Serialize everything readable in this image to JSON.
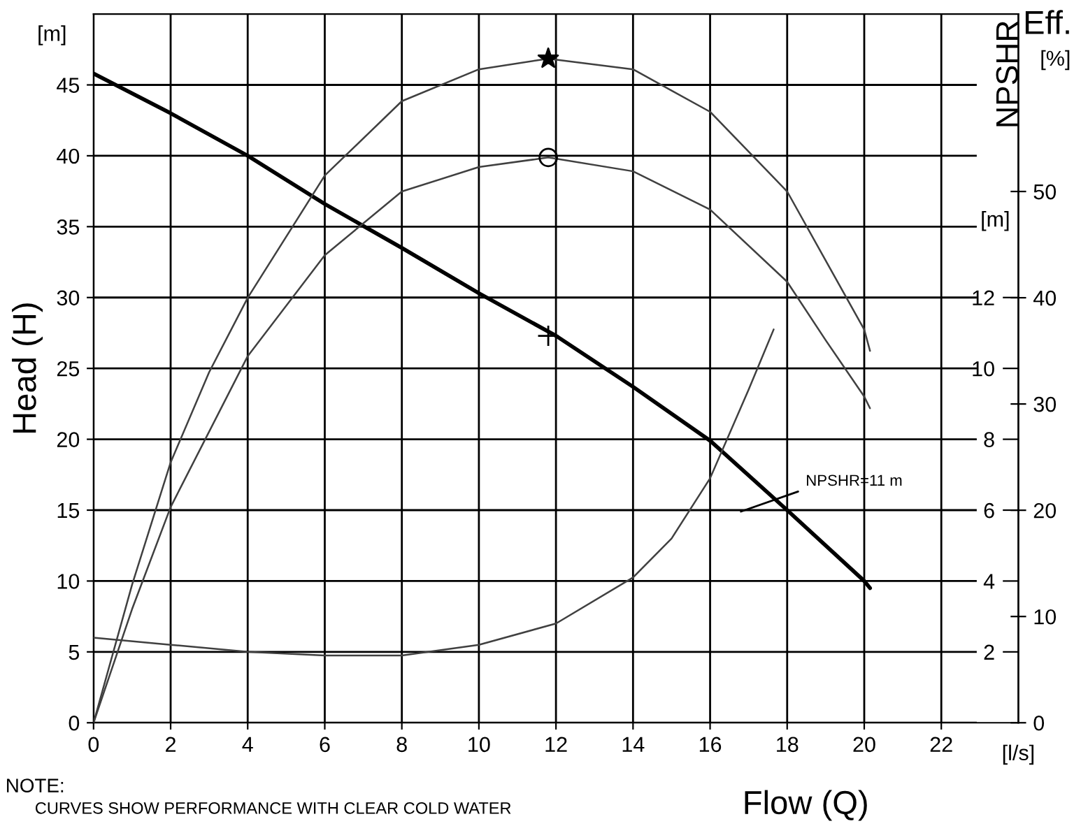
{
  "chart_data": {
    "type": "line",
    "xlabel": "Flow (Q)",
    "ylabel": "Head (H)",
    "y2label": "NPSHR",
    "y3label": "Eff.",
    "xlim": [
      0,
      24
    ],
    "xticks": [
      0,
      2,
      4,
      6,
      8,
      10,
      12,
      14,
      16,
      18,
      20,
      22
    ],
    "ylim": [
      0,
      50
    ],
    "yticks": [
      0,
      5,
      10,
      15,
      20,
      25,
      30,
      35,
      40,
      45
    ],
    "y2lim": [
      0,
      20
    ],
    "y2ticks": [
      2,
      4,
      6,
      8,
      10,
      12
    ],
    "y3lim": [
      0,
      66.7
    ],
    "y3ticks": [
      0,
      10,
      20,
      30,
      40,
      50
    ],
    "grid": true,
    "series": [
      {
        "color": "#000000",
        "axis": "y",
        "x": [
          0,
          2,
          4,
          6,
          8,
          10,
          12,
          14,
          16,
          18,
          20,
          20.15
        ],
        "values": [
          45.8,
          43.0,
          40.0,
          36.6,
          33.5,
          30.3,
          27.3,
          23.7,
          19.9,
          15.0,
          10.0,
          9.5
        ]
      },
      {
        "color": "#404040",
        "axis": "y3",
        "x": [
          0,
          1,
          2,
          3,
          4,
          6,
          8,
          10,
          11.8,
          14,
          15,
          16,
          18,
          19,
          20,
          20.15
        ],
        "values": [
          0,
          13,
          24.5,
          33,
          40,
          51.5,
          58.5,
          61.5,
          62.5,
          61.5,
          59.5,
          57.5,
          50,
          43.5,
          37,
          35
        ]
      },
      {
        "color": "#404040",
        "axis": "y3",
        "x": [
          0,
          1,
          2,
          4,
          6,
          8,
          10,
          11.8,
          14,
          16,
          18,
          19,
          20,
          20.15
        ],
        "values": [
          0,
          10.7,
          20.3,
          34.5,
          44,
          50,
          52.3,
          53.2,
          51.9,
          48.3,
          41.5,
          36,
          30.7,
          29.6
        ]
      },
      {
        "color": "#404040",
        "axis": "y2",
        "x": [
          0,
          2,
          4,
          6,
          8,
          10,
          12,
          14,
          15,
          16,
          17,
          17.65
        ],
        "values": [
          2.4,
          2.2,
          2.0,
          1.9,
          1.9,
          2.2,
          2.8,
          4.1,
          5.2,
          6.9,
          9.4,
          11.1
        ]
      },
      {
        "type": "scatter",
        "marker": "star",
        "color": "#000000",
        "axis": "y3",
        "x": [
          11.8
        ],
        "values": [
          62.5
        ]
      },
      {
        "type": "scatter",
        "marker": "circle",
        "color": "#000000",
        "axis": "y3",
        "x": [
          11.8
        ],
        "values": [
          53.2
        ]
      },
      {
        "type": "scatter",
        "marker": "cross",
        "color": "#000000",
        "axis": "y",
        "x": [
          11.8
        ],
        "values": [
          27.3
        ]
      }
    ],
    "annotations": [
      "[m]",
      "[m]",
      "[%]",
      "[l/s]",
      "NOTE:",
      "CURVES SHOW PERFORMANCE WITH CLEAR COLD WATER",
      "NPSHR=11 m"
    ]
  }
}
